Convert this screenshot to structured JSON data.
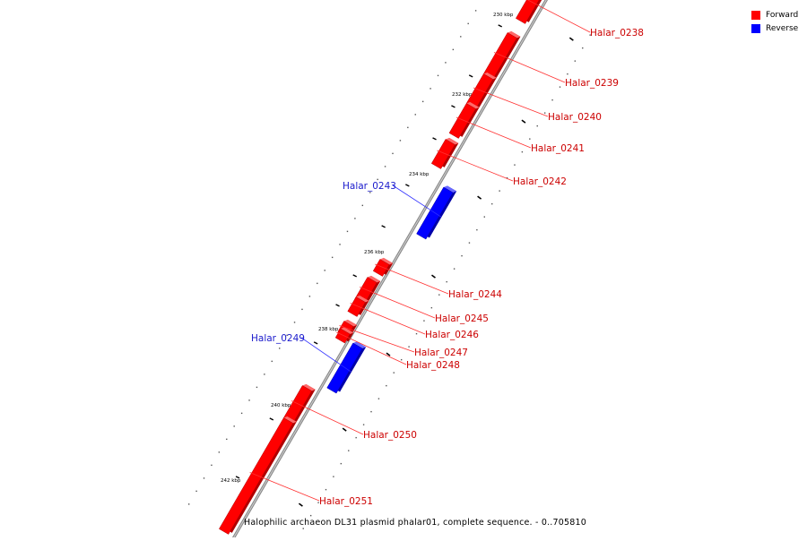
{
  "caption": "Halophilic archaeon DL31 plasmid phalar01, complete sequence. - 0..705810",
  "legend": [
    {
      "label": "Forward",
      "color": "#ff0000"
    },
    {
      "label": "Reverse",
      "color": "#0000ff"
    }
  ],
  "colors": {
    "forward": "#ff0000",
    "reverse": "#0000ff",
    "axis": "#888888",
    "forward_label": "#cc0000",
    "reverse_label": "#1a1acc"
  },
  "ticks": [
    {
      "label": "230 kbp"
    },
    {
      "label": "232 kbp"
    },
    {
      "label": "234 kbp"
    },
    {
      "label": "236 kbp"
    },
    {
      "label": "238 kbp"
    },
    {
      "label": "240 kbp"
    },
    {
      "label": "242 kbp"
    }
  ],
  "genes": [
    {
      "name": "Halar_0238",
      "strand": "forward"
    },
    {
      "name": "Halar_0239",
      "strand": "forward"
    },
    {
      "name": "Halar_0240",
      "strand": "forward"
    },
    {
      "name": "Halar_0241",
      "strand": "forward"
    },
    {
      "name": "Halar_0242",
      "strand": "forward"
    },
    {
      "name": "Halar_0243",
      "strand": "reverse"
    },
    {
      "name": "Halar_0244",
      "strand": "forward"
    },
    {
      "name": "Halar_0245",
      "strand": "forward"
    },
    {
      "name": "Halar_0246",
      "strand": "forward"
    },
    {
      "name": "Halar_0247",
      "strand": "forward"
    },
    {
      "name": "Halar_0248",
      "strand": "forward"
    },
    {
      "name": "Halar_0249",
      "strand": "reverse"
    },
    {
      "name": "Halar_0250",
      "strand": "forward"
    },
    {
      "name": "Halar_0251",
      "strand": "forward"
    }
  ]
}
